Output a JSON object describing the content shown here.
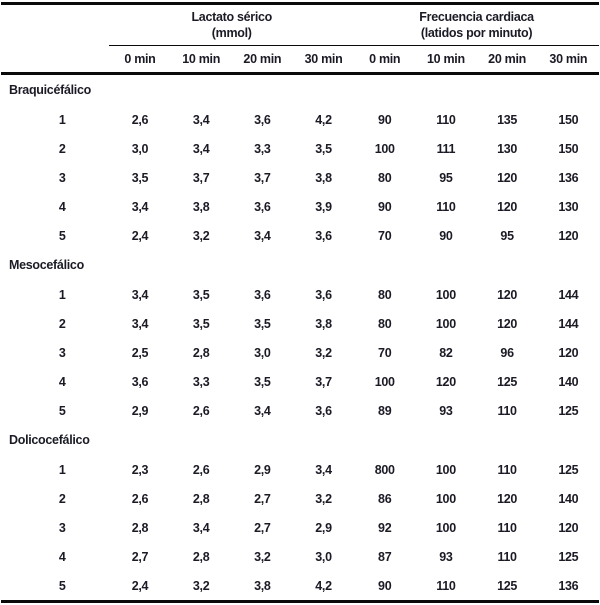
{
  "table": {
    "group_headers": [
      {
        "line1": "Lactato sérico",
        "line2": "(mmol)"
      },
      {
        "line1": "Frecuencia cardiaca",
        "line2": "(latidos por minuto)"
      }
    ],
    "time_headers": [
      "0 min",
      "10 min",
      "20 min",
      "30 min",
      "0 min",
      "10 min",
      "20 min",
      "30 min"
    ],
    "sections": [
      {
        "name": "Braquicéfálico",
        "rows": [
          {
            "label": "1",
            "values": [
              "2,6",
              "3,4",
              "3,6",
              "4,2",
              "90",
              "110",
              "135",
              "150"
            ]
          },
          {
            "label": "2",
            "values": [
              "3,0",
              "3,4",
              "3,3",
              "3,5",
              "100",
              "111",
              "130",
              "150"
            ]
          },
          {
            "label": "3",
            "values": [
              "3,5",
              "3,7",
              "3,7",
              "3,8",
              "80",
              "95",
              "120",
              "136"
            ]
          },
          {
            "label": "4",
            "values": [
              "3,4",
              "3,8",
              "3,6",
              "3,9",
              "90",
              "110",
              "120",
              "130"
            ]
          },
          {
            "label": "5",
            "values": [
              "2,4",
              "3,2",
              "3,4",
              "3,6",
              "70",
              "90",
              "95",
              "120"
            ]
          }
        ]
      },
      {
        "name": "Mesocefálico",
        "rows": [
          {
            "label": "1",
            "values": [
              "3,4",
              "3,5",
              "3,6",
              "3,6",
              "80",
              "100",
              "120",
              "144"
            ]
          },
          {
            "label": "2",
            "values": [
              "3,4",
              "3,5",
              "3,5",
              "3,8",
              "80",
              "100",
              "120",
              "144"
            ]
          },
          {
            "label": "3",
            "values": [
              "2,5",
              "2,8",
              "3,0",
              "3,2",
              "70",
              "82",
              "96",
              "120"
            ]
          },
          {
            "label": "4",
            "values": [
              "3,6",
              "3,3",
              "3,5",
              "3,7",
              "100",
              "120",
              "125",
              "140"
            ]
          },
          {
            "label": "5",
            "values": [
              "2,9",
              "2,6",
              "3,4",
              "3,6",
              "89",
              "93",
              "110",
              "125"
            ]
          }
        ]
      },
      {
        "name": "Dolicocefálico",
        "rows": [
          {
            "label": "1",
            "values": [
              "2,3",
              "2,6",
              "2,9",
              "3,4",
              "800",
              "100",
              "110",
              "125"
            ]
          },
          {
            "label": "2",
            "values": [
              "2,6",
              "2,8",
              "2,7",
              "3,2",
              "86",
              "100",
              "120",
              "140"
            ]
          },
          {
            "label": "3",
            "values": [
              "2,8",
              "3,4",
              "2,7",
              "2,9",
              "92",
              "100",
              "110",
              "120"
            ]
          },
          {
            "label": "4",
            "values": [
              "2,7",
              "2,8",
              "3,2",
              "3,0",
              "87",
              "93",
              "110",
              "125"
            ]
          },
          {
            "label": "5",
            "values": [
              "2,4",
              "3,2",
              "3,8",
              "4,2",
              "90",
              "110",
              "125",
              "136"
            ]
          }
        ]
      }
    ],
    "colors": {
      "text": "#1b1b26",
      "rule": "#0a0a0a",
      "background": "#ffffff"
    }
  }
}
